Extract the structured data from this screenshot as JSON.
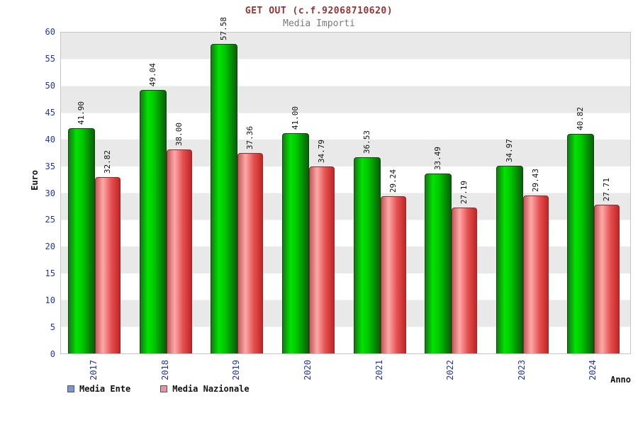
{
  "title": "GET OUT (c.f.92068710620)",
  "subtitle": "Media Importi",
  "axis": {
    "y_title": "Euro",
    "x_title": "Anno",
    "y_ticks": [
      0,
      5,
      10,
      15,
      20,
      25,
      30,
      35,
      40,
      45,
      50,
      55,
      60
    ]
  },
  "legend": [
    {
      "label": "Media Ente",
      "swatch_color": "#7b96cc"
    },
    {
      "label": "Media Nazionale",
      "swatch_color": "#e795a5"
    }
  ],
  "colors": {
    "title": "#993333",
    "subtitle": "#7a7a7a",
    "tick_labels": "#2233bb",
    "bar_ente": "#00cc00",
    "bar_nazionale": "#e45050",
    "band_gray": "#e9e9e9"
  },
  "chart_data": {
    "type": "bar",
    "title": "GET OUT (c.f.92068710620)",
    "subtitle": "Media Importi",
    "xlabel": "Anno",
    "ylabel": "Euro",
    "ylim": [
      0,
      60
    ],
    "ytick_step": 5,
    "grid": "alternating-horizontal-bands",
    "legend_position": "bottom-left",
    "categories": [
      "2017",
      "2018",
      "2019",
      "2020",
      "2021",
      "2022",
      "2023",
      "2024"
    ],
    "series": [
      {
        "name": "Media Ente",
        "color": "green",
        "values": [
          41.9,
          49.04,
          57.58,
          41.0,
          36.53,
          33.49,
          34.97,
          40.82
        ]
      },
      {
        "name": "Media Nazionale",
        "color": "red",
        "values": [
          32.82,
          38.0,
          37.36,
          34.79,
          29.24,
          27.19,
          29.43,
          27.71
        ]
      }
    ]
  }
}
